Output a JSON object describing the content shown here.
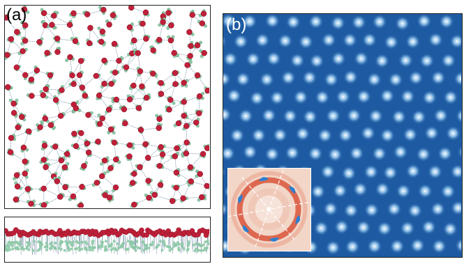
{
  "figure": {
    "panel_a": {
      "label": "(a)"
    },
    "panel_b": {
      "label": "(b)"
    }
  },
  "colors": {
    "oxygen": "#c0203a",
    "hydrogen_cluster": "#8cc9a6",
    "bond": "#4a6b8a",
    "stm_background": "#1d5aa2",
    "stm_spot": "#ffffff",
    "inset_background": "#f2d6c8",
    "inset_ring": "#d9553a",
    "inset_blue": "#2f7fcf"
  }
}
